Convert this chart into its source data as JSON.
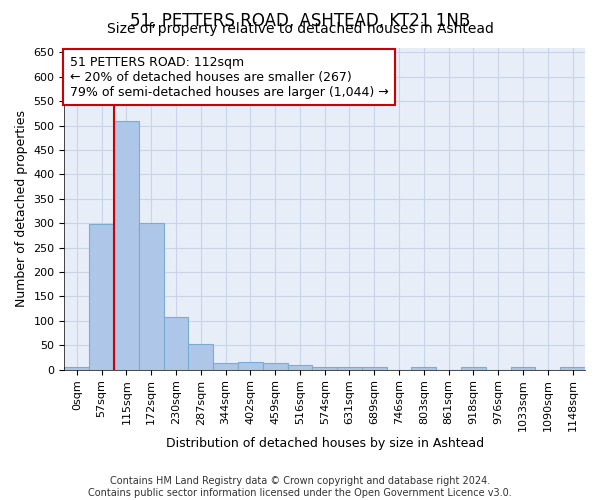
{
  "title1": "51, PETTERS ROAD, ASHTEAD, KT21 1NB",
  "title2": "Size of property relative to detached houses in Ashtead",
  "xlabel": "Distribution of detached houses by size in Ashtead",
  "ylabel": "Number of detached properties",
  "bar_labels": [
    "0sqm",
    "57sqm",
    "115sqm",
    "172sqm",
    "230sqm",
    "287sqm",
    "344sqm",
    "402sqm",
    "459sqm",
    "516sqm",
    "574sqm",
    "631sqm",
    "689sqm",
    "746sqm",
    "803sqm",
    "861sqm",
    "918sqm",
    "976sqm",
    "1033sqm",
    "1090sqm",
    "1148sqm"
  ],
  "bar_values": [
    5,
    298,
    510,
    300,
    107,
    53,
    14,
    15,
    13,
    9,
    6,
    5,
    5,
    0,
    5,
    0,
    5,
    0,
    5,
    0,
    5
  ],
  "bar_color": "#aec6e8",
  "bar_edge_color": "#7aadd4",
  "vline_color": "#cc0000",
  "annotation_text": "51 PETTERS ROAD: 112sqm\n← 20% of detached houses are smaller (267)\n79% of semi-detached houses are larger (1,044) →",
  "annotation_box_color": "white",
  "annotation_box_edge_color": "#cc0000",
  "ylim": [
    0,
    660
  ],
  "yticks": [
    0,
    50,
    100,
    150,
    200,
    250,
    300,
    350,
    400,
    450,
    500,
    550,
    600,
    650
  ],
  "grid_color": "#c8d4e8",
  "background_color": "#e8eef8",
  "footer": "Contains HM Land Registry data © Crown copyright and database right 2024.\nContains public sector information licensed under the Open Government Licence v3.0.",
  "title1_fontsize": 12,
  "title2_fontsize": 10,
  "xlabel_fontsize": 9,
  "ylabel_fontsize": 9,
  "tick_fontsize": 8,
  "annotation_fontsize": 9,
  "footer_fontsize": 7
}
